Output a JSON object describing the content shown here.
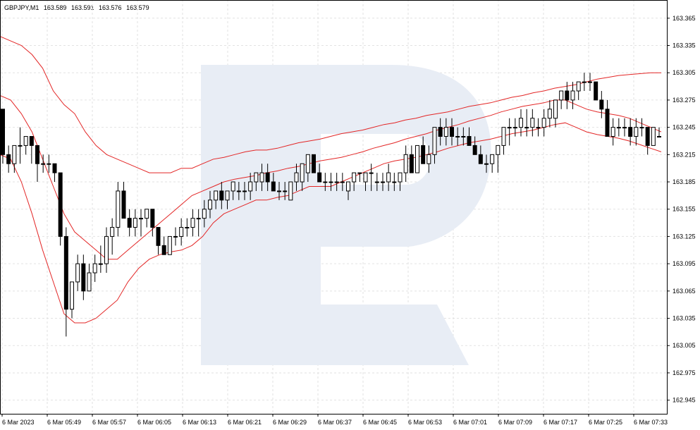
{
  "header": {
    "symbol": "GBPJPY,M1",
    "open": "163.589",
    "high": "163.591",
    "low": "163.576",
    "close": "163.579"
  },
  "chart_data": {
    "type": "candlestick",
    "ylim": [
      162.93,
      163.385
    ],
    "y_ticks": [
      "163.365",
      "163.335",
      "163.305",
      "163.275",
      "163.245",
      "163.215",
      "163.185",
      "163.155",
      "163.125",
      "163.095",
      "163.065",
      "163.035",
      "163.005",
      "162.975",
      "162.945"
    ],
    "x_ticks": [
      "6 Mar 2023",
      "6 Mar 05:49",
      "6 Mar 05:57",
      "6 Mar 06:05",
      "6 Mar 06:13",
      "6 Mar 06:21",
      "6 Mar 06:29",
      "6 Mar 06:37",
      "6 Mar 06:45",
      "6 Mar 06:53",
      "6 Mar 07:01",
      "6 Mar 07:09",
      "6 Mar 07:17",
      "6 Mar 07:25",
      "6 Mar 07:33"
    ],
    "grid": true,
    "colors": {
      "bull": "#ffffff",
      "bear": "#000000",
      "bands": "#e32626",
      "grid": "#e2e2e2",
      "watermark": "#e8edf5"
    },
    "candles": [
      [
        163.265,
        163.265,
        163.205,
        163.215
      ],
      [
        163.215,
        163.225,
        163.195,
        163.205
      ],
      [
        163.205,
        163.225,
        163.195,
        163.225
      ],
      [
        163.225,
        163.245,
        163.205,
        163.225
      ],
      [
        163.225,
        163.235,
        163.215,
        163.235
      ],
      [
        163.235,
        163.235,
        163.205,
        163.225
      ],
      [
        163.225,
        163.225,
        163.185,
        163.205
      ],
      [
        163.205,
        163.215,
        163.195,
        163.205
      ],
      [
        163.205,
        163.215,
        163.195,
        163.205
      ],
      [
        163.205,
        163.205,
        163.185,
        163.195
      ],
      [
        163.195,
        163.195,
        163.115,
        163.125
      ],
      [
        163.125,
        163.135,
        163.015,
        163.045
      ],
      [
        163.045,
        163.075,
        163.035,
        163.075
      ],
      [
        163.075,
        163.105,
        163.065,
        163.095
      ],
      [
        163.095,
        163.105,
        163.055,
        163.065
      ],
      [
        163.065,
        163.095,
        163.065,
        163.085
      ],
      [
        163.085,
        163.105,
        163.075,
        163.095
      ],
      [
        163.095,
        163.115,
        163.085,
        163.095
      ],
      [
        163.095,
        163.135,
        163.085,
        163.125
      ],
      [
        163.125,
        163.145,
        163.105,
        163.135
      ],
      [
        163.135,
        163.185,
        163.125,
        163.175
      ],
      [
        163.175,
        163.185,
        163.145,
        163.145
      ],
      [
        163.145,
        163.155,
        163.125,
        163.135
      ],
      [
        163.135,
        163.155,
        163.125,
        163.145
      ],
      [
        163.145,
        163.155,
        163.125,
        163.145
      ],
      [
        163.145,
        163.155,
        163.135,
        163.155
      ],
      [
        163.155,
        163.155,
        163.125,
        163.135
      ],
      [
        163.135,
        163.135,
        163.105,
        163.115
      ],
      [
        163.115,
        163.125,
        163.105,
        163.105
      ],
      [
        163.105,
        163.125,
        163.105,
        163.125
      ],
      [
        163.125,
        163.135,
        163.115,
        163.125
      ],
      [
        163.125,
        163.145,
        163.115,
        163.135
      ],
      [
        163.135,
        163.145,
        163.125,
        163.135
      ],
      [
        163.135,
        163.155,
        163.125,
        163.145
      ],
      [
        163.145,
        163.155,
        163.125,
        163.145
      ],
      [
        163.145,
        163.165,
        163.135,
        163.155
      ],
      [
        163.155,
        163.175,
        163.145,
        163.165
      ],
      [
        163.165,
        163.175,
        163.155,
        163.175
      ],
      [
        163.175,
        163.185,
        163.155,
        163.165
      ],
      [
        163.165,
        163.175,
        163.155,
        163.175
      ],
      [
        163.175,
        163.185,
        163.165,
        163.185
      ],
      [
        163.175,
        163.185,
        163.165,
        163.175
      ],
      [
        163.175,
        163.185,
        163.165,
        163.175
      ],
      [
        163.175,
        163.195,
        163.165,
        163.185
      ],
      [
        163.185,
        163.195,
        163.175,
        163.195
      ],
      [
        163.185,
        163.205,
        163.175,
        163.195
      ],
      [
        163.195,
        163.205,
        163.175,
        163.185
      ],
      [
        163.185,
        163.195,
        163.175,
        163.175
      ],
      [
        163.175,
        163.185,
        163.165,
        163.175
      ],
      [
        163.175,
        163.185,
        163.165,
        163.175
      ],
      [
        163.165,
        163.185,
        163.165,
        163.185
      ],
      [
        163.185,
        163.205,
        163.175,
        163.195
      ],
      [
        163.185,
        163.205,
        163.175,
        163.205
      ],
      [
        163.195,
        163.215,
        163.185,
        163.215
      ],
      [
        163.215,
        163.215,
        163.195,
        163.195
      ],
      [
        163.195,
        163.205,
        163.185,
        163.185
      ],
      [
        163.185,
        163.195,
        163.175,
        163.185
      ],
      [
        163.185,
        163.195,
        163.175,
        163.185
      ],
      [
        163.185,
        163.195,
        163.175,
        163.185
      ],
      [
        163.185,
        163.195,
        163.175,
        163.185
      ],
      [
        163.175,
        163.185,
        163.165,
        163.185
      ],
      [
        163.185,
        163.195,
        163.175,
        163.195
      ],
      [
        163.195,
        163.195,
        163.185,
        163.195
      ],
      [
        163.185,
        163.195,
        163.175,
        163.195
      ],
      [
        163.195,
        163.205,
        163.175,
        163.195
      ],
      [
        163.185,
        163.195,
        163.175,
        163.185
      ],
      [
        163.185,
        163.195,
        163.175,
        163.185
      ],
      [
        163.185,
        163.205,
        163.175,
        163.195
      ],
      [
        163.185,
        163.195,
        163.175,
        163.185
      ],
      [
        163.185,
        163.195,
        163.175,
        163.195
      ],
      [
        163.195,
        163.225,
        163.185,
        163.215
      ],
      [
        163.215,
        163.225,
        163.195,
        163.195
      ],
      [
        163.195,
        163.225,
        163.195,
        163.225
      ],
      [
        163.225,
        163.235,
        163.205,
        163.205
      ],
      [
        163.205,
        163.225,
        163.195,
        163.215
      ],
      [
        163.215,
        163.245,
        163.205,
        163.245
      ],
      [
        163.245,
        163.255,
        163.225,
        163.235
      ],
      [
        163.235,
        163.255,
        163.225,
        163.245
      ],
      [
        163.245,
        163.255,
        163.225,
        163.235
      ],
      [
        163.235,
        163.245,
        163.225,
        163.235
      ],
      [
        163.235,
        163.245,
        163.225,
        163.235
      ],
      [
        163.235,
        163.245,
        163.225,
        163.225
      ],
      [
        163.225,
        163.235,
        163.215,
        163.215
      ],
      [
        163.215,
        163.225,
        163.205,
        163.205
      ],
      [
        163.205,
        163.215,
        163.195,
        163.205
      ],
      [
        163.205,
        163.215,
        163.195,
        163.215
      ],
      [
        163.215,
        163.225,
        163.195,
        163.225
      ],
      [
        163.225,
        163.245,
        163.215,
        163.245
      ],
      [
        163.245,
        163.255,
        163.225,
        163.245
      ],
      [
        163.245,
        163.255,
        163.235,
        163.245
      ],
      [
        163.245,
        163.265,
        163.235,
        163.255
      ],
      [
        163.245,
        163.265,
        163.235,
        163.245
      ],
      [
        163.245,
        163.265,
        163.235,
        163.255
      ],
      [
        163.245,
        163.255,
        163.235,
        163.245
      ],
      [
        163.245,
        163.265,
        163.235,
        163.255
      ],
      [
        163.255,
        163.275,
        163.245,
        163.265
      ],
      [
        163.255,
        163.275,
        163.245,
        163.275
      ],
      [
        163.275,
        163.285,
        163.265,
        163.285
      ],
      [
        163.285,
        163.295,
        163.265,
        163.275
      ],
      [
        163.275,
        163.295,
        163.265,
        163.285
      ],
      [
        163.285,
        163.295,
        163.275,
        163.295
      ],
      [
        163.295,
        163.305,
        163.285,
        163.295
      ],
      [
        163.295,
        163.305,
        163.285,
        163.295
      ],
      [
        163.295,
        163.295,
        163.275,
        163.275
      ],
      [
        163.275,
        163.285,
        163.255,
        163.265
      ],
      [
        163.265,
        163.275,
        163.235,
        163.235
      ],
      [
        163.235,
        163.255,
        163.225,
        163.245
      ],
      [
        163.245,
        163.255,
        163.235,
        163.245
      ],
      [
        163.245,
        163.255,
        163.235,
        163.245
      ],
      [
        163.245,
        163.255,
        163.225,
        163.235
      ],
      [
        163.235,
        163.255,
        163.225,
        163.245
      ],
      [
        163.245,
        163.255,
        163.235,
        163.245
      ],
      [
        163.245,
        163.245,
        163.215,
        163.225
      ],
      [
        163.225,
        163.245,
        163.225,
        163.245
      ],
      [
        163.235,
        163.245,
        163.235,
        163.235
      ]
    ],
    "bands": {
      "upper": [
        163.345,
        163.34,
        163.335,
        163.325,
        163.31,
        163.285,
        163.27,
        163.26,
        163.24,
        163.225,
        163.215,
        163.21,
        163.205,
        163.2,
        163.195,
        163.195,
        163.195,
        163.2,
        163.2,
        163.205,
        163.21,
        163.212,
        163.215,
        163.218,
        163.22,
        163.22,
        163.222,
        163.225,
        163.228,
        163.23,
        163.232,
        163.235,
        163.238,
        163.24,
        163.242,
        163.245,
        163.248,
        163.25,
        163.253,
        163.255,
        163.258,
        163.26,
        163.262,
        163.265,
        163.268,
        163.27,
        163.272,
        163.275,
        163.278,
        163.28,
        163.283,
        163.285,
        163.288,
        163.29,
        163.292,
        163.295,
        163.298,
        163.3,
        163.302,
        163.303,
        163.304,
        163.305,
        163.305
      ],
      "middle": [
        163.28,
        163.275,
        163.26,
        163.24,
        163.21,
        163.18,
        163.15,
        163.13,
        163.12,
        163.11,
        163.1,
        163.1,
        163.11,
        163.12,
        163.13,
        163.14,
        163.15,
        163.16,
        163.17,
        163.175,
        163.18,
        163.185,
        163.188,
        163.19,
        163.192,
        163.195,
        163.197,
        163.2,
        163.202,
        163.205,
        163.208,
        163.21,
        163.212,
        163.215,
        163.218,
        163.222,
        163.225,
        163.228,
        163.232,
        163.235,
        163.238,
        163.242,
        163.245,
        163.248,
        163.252,
        163.255,
        163.258,
        163.262,
        163.265,
        163.268,
        163.27,
        163.272,
        163.275,
        163.275,
        163.27,
        163.265,
        163.262,
        163.26,
        163.258,
        163.255,
        163.25,
        163.245,
        163.24
      ],
      "lower": [
        163.215,
        163.21,
        163.185,
        163.15,
        163.11,
        163.075,
        163.04,
        163.03,
        163.03,
        163.035,
        163.045,
        163.055,
        163.075,
        163.09,
        163.1,
        163.105,
        163.108,
        163.11,
        163.115,
        163.125,
        163.14,
        163.15,
        163.155,
        163.16,
        163.165,
        163.165,
        163.168,
        163.17,
        163.175,
        163.18,
        163.18,
        163.18,
        163.185,
        163.19,
        163.195,
        163.2,
        163.205,
        163.208,
        163.21,
        163.212,
        163.215,
        163.218,
        163.222,
        163.225,
        163.228,
        163.23,
        163.232,
        163.235,
        163.238,
        163.24,
        163.242,
        163.245,
        163.248,
        163.25,
        163.245,
        163.24,
        163.237,
        163.235,
        163.233,
        163.23,
        163.226,
        163.222,
        163.218
      ]
    }
  }
}
